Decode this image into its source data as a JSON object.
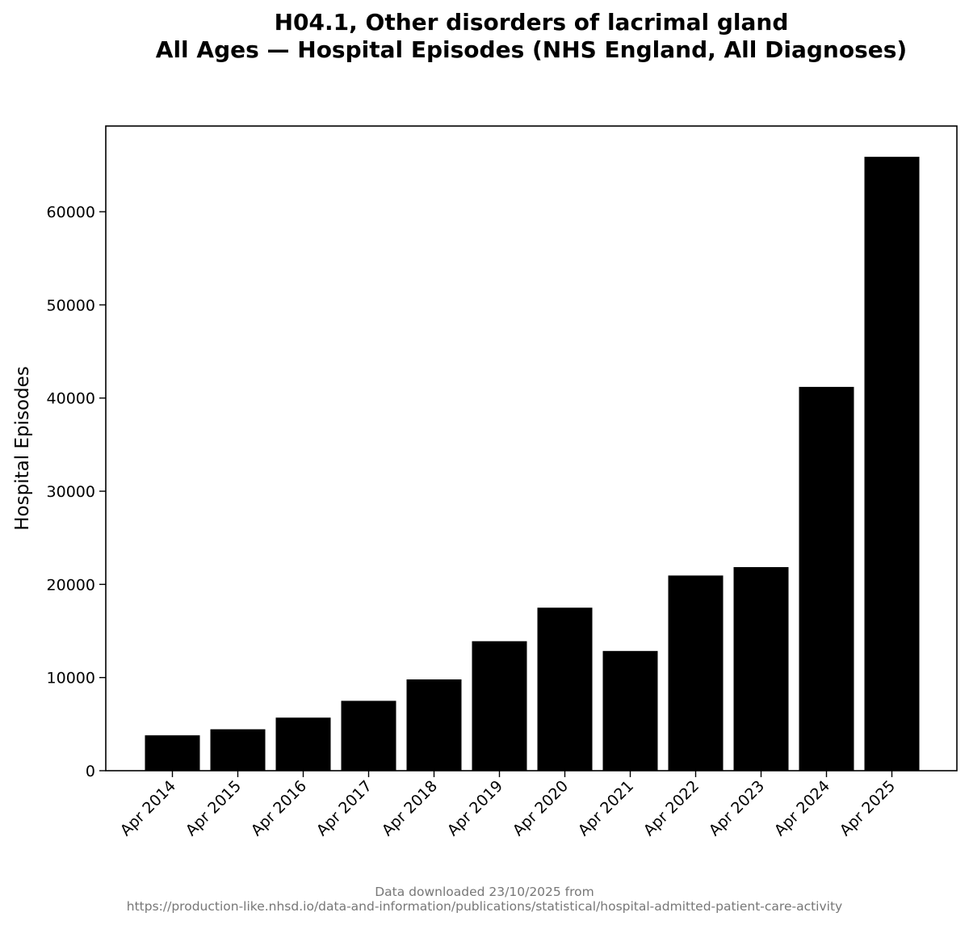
{
  "chart_data": {
    "type": "bar",
    "title_lines": [
      "H04.1, Other disorders of lacrimal gland",
      "All Ages — Hospital Episodes (NHS England, All Diagnoses)"
    ],
    "xlabel": "",
    "ylabel": "Hospital Episodes",
    "categories": [
      "Apr 2014",
      "Apr 2015",
      "Apr 2016",
      "Apr 2017",
      "Apr 2018",
      "Apr 2019",
      "Apr 2020",
      "Apr 2021",
      "Apr 2022",
      "Apr 2023",
      "Apr 2024",
      "Apr 2025"
    ],
    "values": [
      3800,
      4450,
      5700,
      7500,
      9800,
      13900,
      17500,
      12850,
      20950,
      21850,
      41200,
      65900
    ],
    "ylim": [
      0,
      69200
    ],
    "yticks": [
      0,
      10000,
      20000,
      30000,
      40000,
      50000,
      60000
    ],
    "grid": false,
    "legend": "none",
    "bar_color": "#000000"
  },
  "footer": {
    "line1": "Data downloaded 23/10/2025 from",
    "line2": "https://production-like.nhsd.io/data-and-information/publications/statistical/hospital-admitted-patient-care-activity"
  }
}
